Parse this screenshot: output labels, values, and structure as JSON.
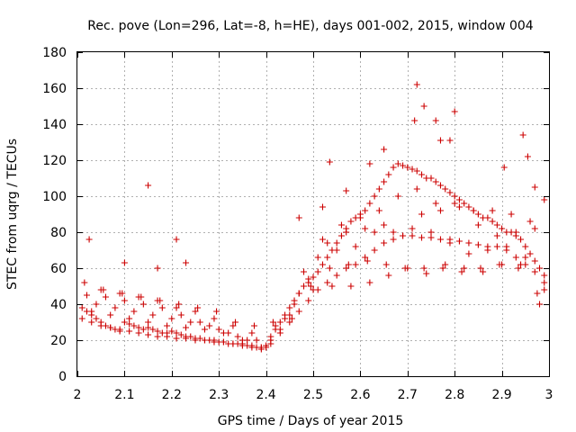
{
  "chart_data": {
    "type": "scatter",
    "title": "Rec. pove (Lon=296, Lat=-8, h=HE), days 001-002, 2015, window 004",
    "xlabel": "GPS time / Days of year 2015",
    "ylabel": "STEC from uqrg / TECUs",
    "xlim": [
      2,
      3
    ],
    "ylim": [
      0,
      180
    ],
    "xticks": [
      2,
      2.1,
      2.2,
      2.3,
      2.4,
      2.5,
      2.6,
      2.7,
      2.8,
      2.9,
      3
    ],
    "xtick_labels": [
      "2",
      "2.1",
      "2.2",
      "2.3",
      "2.4",
      "2.5",
      "2.6",
      "2.7",
      "2.8",
      "2.9",
      "3"
    ],
    "yticks": [
      0,
      20,
      40,
      60,
      80,
      100,
      120,
      140,
      160,
      180
    ],
    "ytick_labels": [
      "0",
      "20",
      "40",
      "60",
      "80",
      "100",
      "120",
      "140",
      "160",
      "180"
    ],
    "grid": true,
    "marker": "plus",
    "color": "#cc0000",
    "series": [
      {
        "name": "STEC",
        "x": [
          2.01,
          2.02,
          2.03,
          2.04,
          2.05,
          2.06,
          2.07,
          2.08,
          2.09,
          2.1,
          2.11,
          2.12,
          2.13,
          2.14,
          2.15,
          2.16,
          2.17,
          2.18,
          2.19,
          2.2,
          2.21,
          2.22,
          2.23,
          2.24,
          2.25,
          2.26,
          2.27,
          2.28,
          2.29,
          2.3,
          2.31,
          2.32,
          2.33,
          2.34,
          2.35,
          2.36,
          2.37,
          2.38,
          2.39,
          2.4,
          2.41,
          2.42,
          2.43,
          2.44,
          2.45,
          2.46,
          2.47,
          2.48,
          2.49,
          2.5,
          2.51,
          2.52,
          2.53,
          2.54,
          2.55,
          2.56,
          2.57,
          2.58,
          2.59,
          2.6,
          2.61,
          2.62,
          2.63,
          2.64,
          2.65,
          2.66,
          2.67,
          2.68,
          2.69,
          2.7,
          2.71,
          2.72,
          2.73,
          2.74,
          2.75,
          2.76,
          2.77,
          2.78,
          2.79,
          2.8,
          2.81,
          2.82,
          2.83,
          2.84,
          2.85,
          2.86,
          2.87,
          2.88,
          2.89,
          2.9,
          2.91,
          2.92,
          2.93,
          2.94,
          2.95,
          2.96,
          2.97,
          2.98,
          2.99,
          2.01,
          2.03,
          2.05,
          2.07,
          2.09,
          2.11,
          2.13,
          2.15,
          2.17,
          2.19,
          2.21,
          2.23,
          2.25,
          2.27,
          2.29,
          2.31,
          2.33,
          2.35,
          2.37,
          2.39,
          2.41,
          2.43,
          2.45,
          2.47,
          2.49,
          2.51,
          2.53,
          2.55,
          2.57,
          2.59,
          2.61,
          2.63,
          2.65,
          2.67,
          2.69,
          2.71,
          2.73,
          2.75,
          2.77,
          2.79,
          2.81,
          2.83,
          2.85,
          2.87,
          2.89,
          2.91,
          2.93,
          2.95,
          2.97,
          2.99,
          2.02,
          2.06,
          2.1,
          2.14,
          2.18,
          2.22,
          2.26,
          2.3,
          2.34,
          2.38,
          2.42,
          2.46,
          2.5,
          2.54,
          2.58,
          2.62,
          2.66,
          2.7,
          2.74,
          2.78,
          2.82,
          2.86,
          2.9,
          2.94,
          2.98,
          2.04,
          2.08,
          2.12,
          2.16,
          2.2,
          2.24,
          2.28,
          2.32,
          2.36,
          2.4,
          2.44,
          2.48,
          2.52,
          2.56,
          2.6,
          2.64,
          2.68,
          2.72,
          2.76,
          2.8,
          2.84,
          2.88,
          2.92,
          2.96,
          2.05,
          2.09,
          2.13,
          2.17,
          2.21,
          2.25,
          2.29,
          2.33,
          2.37,
          2.41,
          2.45,
          2.49,
          2.53,
          2.57,
          2.61,
          2.65,
          2.69,
          2.73,
          2.77,
          2.81,
          2.85,
          2.89,
          2.93,
          2.97,
          2.03,
          2.07,
          2.11,
          2.15,
          2.19,
          2.23,
          2.27,
          2.31,
          2.35,
          2.39,
          2.43,
          2.47,
          2.51,
          2.55,
          2.59,
          2.63,
          2.67,
          2.71,
          2.75,
          2.79,
          2.83,
          2.87,
          2.91,
          2.95,
          2.99,
          2.025,
          2.1,
          2.15,
          2.17,
          2.21,
          2.23,
          2.47,
          2.52,
          2.535,
          2.57,
          2.62,
          2.65,
          2.715,
          2.72,
          2.735,
          2.76,
          2.77,
          2.79,
          2.8,
          2.905,
          2.945,
          2.955,
          2.97,
          2.99,
          2.015,
          2.055,
          2.095,
          2.135,
          2.175,
          2.215,
          2.255,
          2.295,
          2.335,
          2.375,
          2.415,
          2.455,
          2.495,
          2.535,
          2.575,
          2.615,
          2.655,
          2.695,
          2.735,
          2.775,
          2.815,
          2.855,
          2.895,
          2.935,
          2.975
        ],
        "y": [
          38,
          36,
          34,
          32,
          30,
          28,
          27,
          26,
          25,
          30,
          29,
          28,
          27,
          26,
          27,
          26,
          25,
          24,
          24,
          25,
          24,
          23,
          22,
          22,
          21,
          21,
          20,
          20,
          20,
          19,
          19,
          18,
          18,
          18,
          17,
          17,
          16,
          16,
          16,
          17,
          22,
          26,
          30,
          34,
          38,
          42,
          46,
          50,
          52,
          55,
          58,
          62,
          66,
          70,
          74,
          78,
          82,
          86,
          88,
          90,
          92,
          96,
          100,
          104,
          108,
          112,
          116,
          118,
          117,
          116,
          115,
          114,
          112,
          110,
          110,
          108,
          106,
          104,
          102,
          100,
          98,
          96,
          94,
          92,
          90,
          88,
          88,
          86,
          84,
          82,
          80,
          80,
          78,
          76,
          72,
          68,
          64,
          60,
          56,
          32,
          30,
          28,
          27,
          26,
          25,
          24,
          23,
          22,
          22,
          21,
          21,
          20,
          20,
          19,
          19,
          18,
          18,
          17,
          16,
          18,
          24,
          30,
          36,
          42,
          48,
          52,
          56,
          60,
          62,
          66,
          70,
          74,
          76,
          78,
          78,
          77,
          77,
          76,
          76,
          75,
          74,
          73,
          72,
          72,
          70,
          66,
          62,
          58,
          52,
          45,
          44,
          42,
          40,
          38,
          34,
          30,
          26,
          22,
          20,
          28,
          40,
          48,
          50,
          50,
          52,
          56,
          60,
          57,
          62,
          60,
          58,
          62,
          62,
          40,
          40,
          38,
          36,
          34,
          32,
          30,
          28,
          24,
          20,
          16,
          32,
          58,
          76,
          84,
          88,
          92,
          100,
          104,
          96,
          96,
          92,
          92,
          90,
          86,
          48,
          46,
          44,
          42,
          38,
          36,
          32,
          28,
          24,
          20,
          34,
          54,
          74,
          80,
          82,
          84,
          78,
          90,
          92,
          94,
          84,
          78,
          80,
          82,
          36,
          34,
          32,
          30,
          28,
          27,
          26,
          24,
          20,
          15,
          26,
          46,
          66,
          70,
          72,
          80,
          80,
          82,
          80,
          74,
          68,
          70,
          72,
          66,
          48,
          76,
          63,
          106,
          60,
          76,
          63,
          88,
          94,
          119,
          103,
          118,
          126,
          142,
          162,
          150,
          142,
          131,
          131,
          147,
          116,
          134,
          122,
          105,
          98,
          52,
          48,
          46,
          44,
          42,
          40,
          38,
          36,
          30,
          28,
          30,
          32,
          50,
          60,
          62,
          64,
          62,
          60,
          60,
          60,
          58,
          60,
          62,
          60,
          46
        ]
      }
    ]
  }
}
